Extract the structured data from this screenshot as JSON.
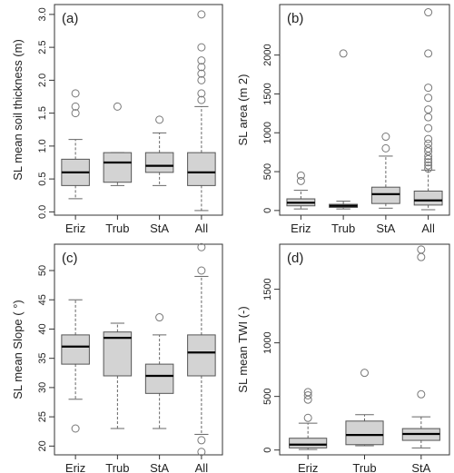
{
  "chart_data": [
    {
      "type": "boxplot",
      "panel_label": "(a)",
      "ylabel": "SL mean soil thickness (m)",
      "ylim": [
        -0.05,
        3.15
      ],
      "yticks": [
        0.0,
        0.5,
        1.0,
        1.5,
        2.0,
        2.5,
        3.0
      ],
      "ytick_labels": [
        "0.0",
        "0.5",
        "1.0",
        "1.5",
        "2.0",
        "2.5",
        "3.0"
      ],
      "categories": [
        "Eriz",
        "Trub",
        "StA",
        "All"
      ],
      "boxes": [
        {
          "whisker_low": 0.2,
          "q1": 0.4,
          "median": 0.6,
          "q3": 0.8,
          "whisker_high": 1.1,
          "outliers": [
            1.5,
            1.6,
            1.8
          ]
        },
        {
          "whisker_low": 0.4,
          "q1": 0.45,
          "median": 0.75,
          "q3": 0.9,
          "whisker_high": 0.9,
          "outliers": [
            1.6
          ]
        },
        {
          "whisker_low": 0.4,
          "q1": 0.6,
          "median": 0.7,
          "q3": 0.9,
          "whisker_high": 1.2,
          "outliers": [
            1.4
          ]
        },
        {
          "whisker_low": 0.02,
          "q1": 0.4,
          "median": 0.6,
          "q3": 0.9,
          "whisker_high": 1.6,
          "outliers": [
            1.7,
            1.8,
            2.0,
            2.1,
            2.2,
            2.3,
            2.5,
            3.0
          ]
        }
      ]
    },
    {
      "type": "boxplot",
      "panel_label": "(b)",
      "ylabel": "SL area (m 2)",
      "ylim": [
        -60,
        2650
      ],
      "yticks": [
        0,
        500,
        1000,
        1500,
        2000
      ],
      "ytick_labels": [
        "0",
        "500",
        "1000",
        "1500",
        "2000"
      ],
      "categories": [
        "Eriz",
        "Trub",
        "StA",
        "All"
      ],
      "boxes": [
        {
          "whisker_low": 20,
          "q1": 60,
          "median": 100,
          "q3": 150,
          "whisker_high": 260,
          "outliers": [
            380,
            450
          ]
        },
        {
          "whisker_low": 20,
          "q1": 40,
          "median": 60,
          "q3": 80,
          "whisker_high": 120,
          "outliers": [
            2020
          ]
        },
        {
          "whisker_low": 30,
          "q1": 90,
          "median": 210,
          "q3": 300,
          "whisker_high": 700,
          "outliers": [
            800,
            950
          ]
        },
        {
          "whisker_low": 10,
          "q1": 70,
          "median": 130,
          "q3": 250,
          "whisker_high": 520,
          "outliers": [
            540,
            580,
            620,
            660,
            700,
            760,
            800,
            860,
            920,
            1060,
            1200,
            1300,
            1450,
            1580,
            2020,
            2550
          ]
        }
      ]
    },
    {
      "type": "boxplot",
      "panel_label": "(c)",
      "ylabel": "SL mean Slope ( °)",
      "ylim": [
        18.5,
        54.5
      ],
      "yticks": [
        20,
        25,
        30,
        35,
        40,
        45,
        50
      ],
      "ytick_labels": [
        "20",
        "25",
        "30",
        "35",
        "40",
        "45",
        "50"
      ],
      "categories": [
        "Eriz",
        "Trub",
        "StA",
        "All"
      ],
      "boxes": [
        {
          "whisker_low": 28,
          "q1": 34,
          "median": 37,
          "q3": 39,
          "whisker_high": 45,
          "outliers": [
            23
          ]
        },
        {
          "whisker_low": 23,
          "q1": 32,
          "median": 38.5,
          "q3": 39.5,
          "whisker_high": 41,
          "outliers": []
        },
        {
          "whisker_low": 23,
          "q1": 29,
          "median": 32,
          "q3": 34,
          "whisker_high": 39,
          "outliers": [
            42
          ]
        },
        {
          "whisker_low": 22,
          "q1": 32,
          "median": 36,
          "q3": 39,
          "whisker_high": 49,
          "outliers": [
            19,
            21,
            50,
            54
          ]
        }
      ]
    },
    {
      "type": "boxplot",
      "panel_label": "(d)",
      "ylabel": "SL mean TWI (-)",
      "ylim": [
        -45,
        1920
      ],
      "yticks": [
        0,
        500,
        1000,
        1500
      ],
      "ytick_labels": [
        "0",
        "500",
        "1000",
        "1500"
      ],
      "categories": [
        "Eriz",
        "Trub",
        "StA"
      ],
      "boxes": [
        {
          "whisker_low": 5,
          "q1": 20,
          "median": 50,
          "q3": 110,
          "whisker_high": 250,
          "outliers": [
            300,
            470,
            510,
            540
          ]
        },
        {
          "whisker_low": 40,
          "q1": 50,
          "median": 140,
          "q3": 270,
          "whisker_high": 330,
          "outliers": [
            720
          ]
        },
        {
          "whisker_low": 20,
          "q1": 90,
          "median": 150,
          "q3": 200,
          "whisker_high": 310,
          "outliers": [
            520,
            1800,
            1870
          ]
        }
      ]
    }
  ]
}
